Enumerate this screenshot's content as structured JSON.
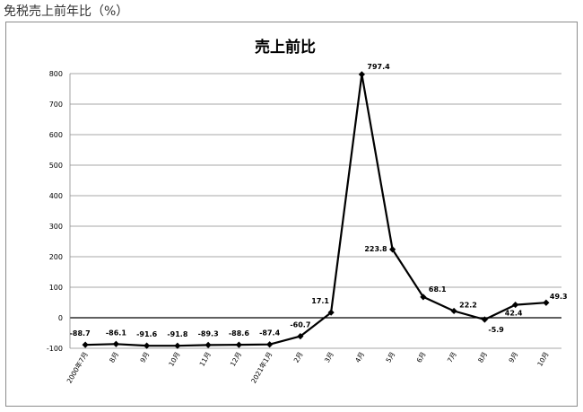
{
  "page": {
    "heading": "免税売上前年比（%）"
  },
  "chart_data": {
    "type": "line",
    "title": "売上前比",
    "xlabel": "",
    "ylabel": "",
    "ylim": [
      -100,
      800
    ],
    "yticks": [
      -100,
      0,
      100,
      200,
      300,
      400,
      500,
      600,
      700,
      800
    ],
    "grid": true,
    "legend": "none",
    "categories": [
      "2000年7月",
      "8月",
      "9月",
      "10月",
      "11月",
      "12月",
      "2021年1月",
      "2月",
      "3月",
      "4月",
      "5月",
      "6月",
      "7月",
      "8月",
      "9月",
      "10月"
    ],
    "series": [
      {
        "values": [
          -88.7,
          -86.1,
          -91.6,
          -91.8,
          -89.3,
          -88.6,
          -87.4,
          -60.7,
          17.1,
          797.4,
          223.8,
          68.1,
          22.2,
          -5.9,
          42.4,
          49.3
        ],
        "labels": [
          "-88.7",
          "-86.1",
          "-91.6",
          "-91.8",
          "-89.3",
          "-88.6",
          "-87.4",
          "-60.7",
          "17.1",
          "797.4",
          "223.8",
          "68.1",
          "22.2",
          "-5.9",
          "42.4",
          "49.3"
        ],
        "color": "#000000"
      }
    ]
  }
}
